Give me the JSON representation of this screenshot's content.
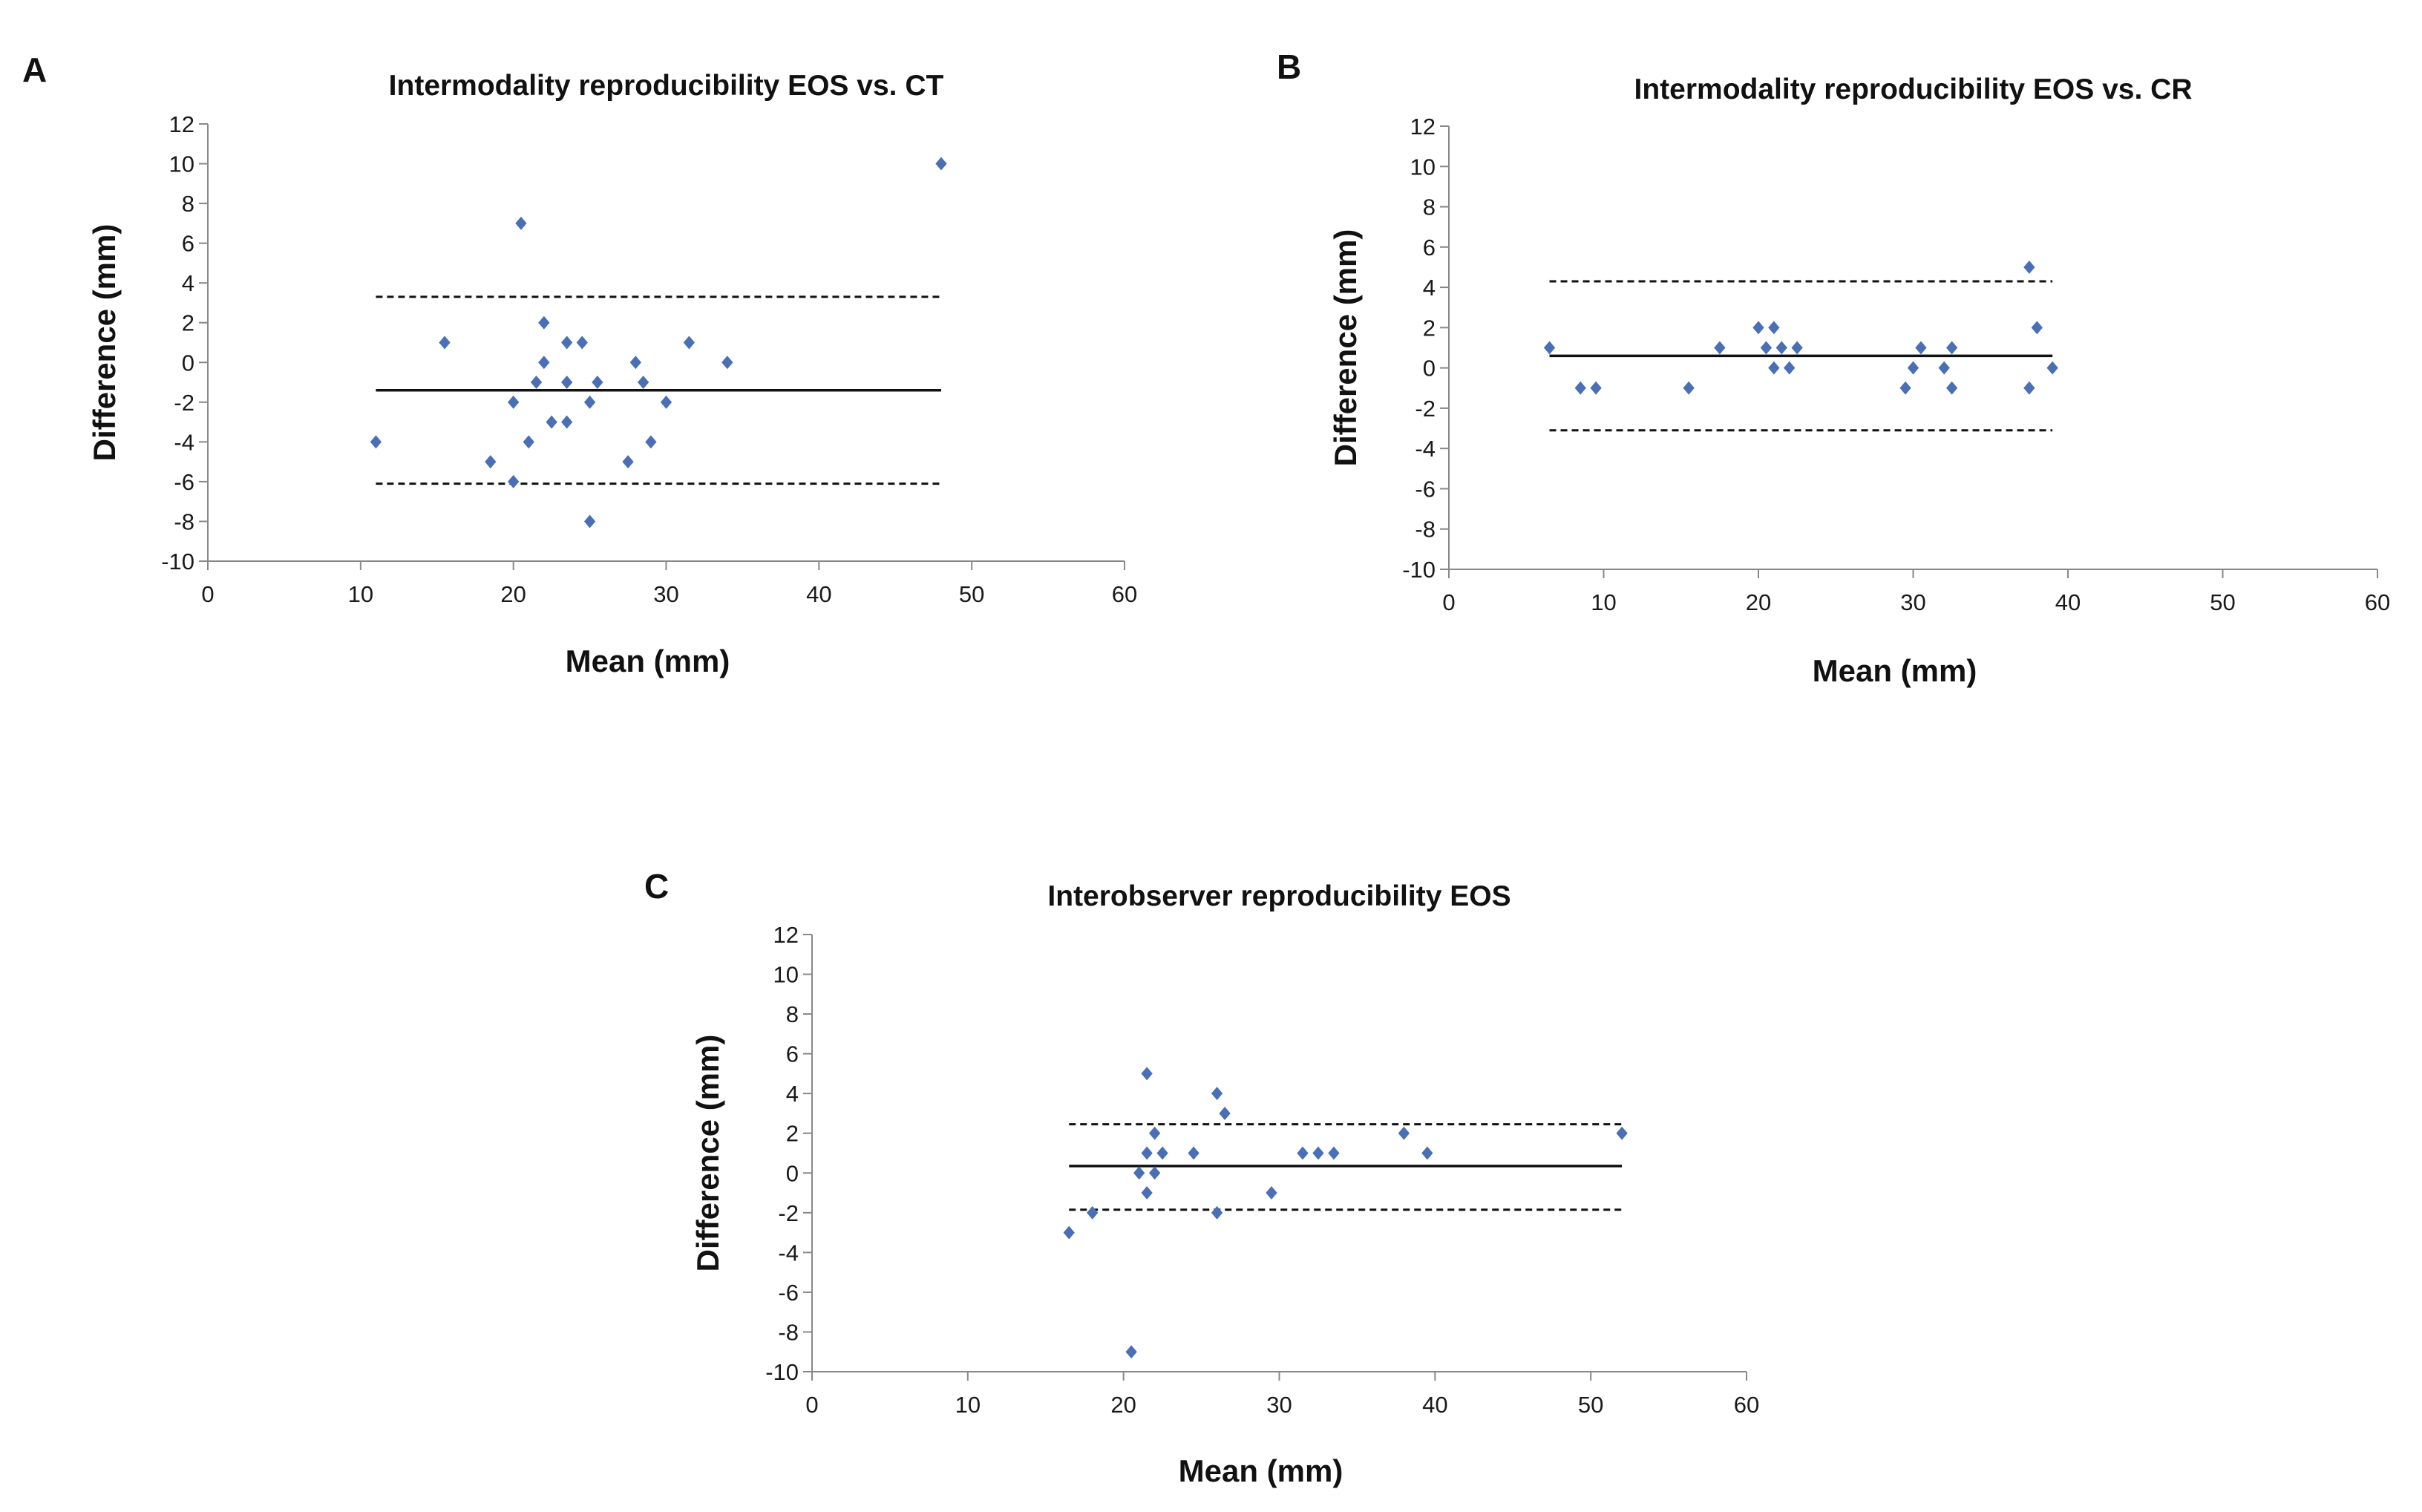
{
  "colors": {
    "point": "#4a6fb5",
    "axis": "#888888",
    "line": "#111111"
  },
  "chart_data": [
    {
      "panel": "A",
      "type": "scatter",
      "title": "Intermodality reproducibility EOS vs. CT",
      "xlabel": "Mean (mm)",
      "ylabel": "Difference (mm)",
      "xlim": [
        0,
        60
      ],
      "ylim": [
        -10,
        12
      ],
      "xticks": [
        0,
        10,
        20,
        30,
        40,
        50,
        60
      ],
      "yticks": [
        -10,
        -8,
        -6,
        -4,
        -2,
        0,
        2,
        4,
        6,
        8,
        10,
        12
      ],
      "points": [
        [
          11,
          -4
        ],
        [
          15.5,
          1
        ],
        [
          18.5,
          -5
        ],
        [
          20,
          -2
        ],
        [
          20,
          -6
        ],
        [
          20.5,
          7
        ],
        [
          21,
          -4
        ],
        [
          21.5,
          -1
        ],
        [
          22,
          2
        ],
        [
          22,
          0
        ],
        [
          22.5,
          -3
        ],
        [
          23.5,
          -3
        ],
        [
          23.5,
          1
        ],
        [
          23.5,
          -1
        ],
        [
          24.5,
          1
        ],
        [
          25,
          -2
        ],
        [
          25,
          -8
        ],
        [
          25.5,
          -1
        ],
        [
          27.5,
          -5
        ],
        [
          28,
          0
        ],
        [
          28.5,
          -1
        ],
        [
          29,
          -4
        ],
        [
          30,
          -2
        ],
        [
          31.5,
          1
        ],
        [
          34,
          0
        ],
        [
          48,
          10
        ]
      ],
      "mean_line": -1.4,
      "upper_loa": 3.3,
      "lower_loa": -6.1,
      "line_x_range": [
        11,
        48
      ]
    },
    {
      "panel": "B",
      "type": "scatter",
      "title": "Intermodality reproducibility EOS vs. CR",
      "xlabel": "Mean (mm)",
      "ylabel": "Difference (mm)",
      "xlim": [
        0,
        60
      ],
      "ylim": [
        -10,
        12
      ],
      "xticks": [
        0,
        10,
        20,
        30,
        40,
        50,
        60
      ],
      "yticks": [
        -10,
        -8,
        -6,
        -4,
        -2,
        0,
        2,
        4,
        6,
        8,
        10,
        12
      ],
      "points": [
        [
          6.5,
          1
        ],
        [
          8.5,
          -1
        ],
        [
          9.5,
          -1
        ],
        [
          15.5,
          -1
        ],
        [
          17.5,
          1
        ],
        [
          20,
          2
        ],
        [
          20.5,
          1
        ],
        [
          21,
          2
        ],
        [
          21,
          0
        ],
        [
          21.5,
          1
        ],
        [
          22,
          0
        ],
        [
          22.5,
          1
        ],
        [
          29.5,
          -1
        ],
        [
          30,
          0
        ],
        [
          30.5,
          1
        ],
        [
          32,
          0
        ],
        [
          32.5,
          -1
        ],
        [
          32.5,
          1
        ],
        [
          37.5,
          5
        ],
        [
          37.5,
          -1
        ],
        [
          38,
          2
        ],
        [
          39,
          0
        ]
      ],
      "mean_line": 0.6,
      "upper_loa": 4.3,
      "lower_loa": -3.1,
      "line_x_range": [
        6.5,
        39
      ]
    },
    {
      "panel": "C",
      "type": "scatter",
      "title": "Interobserver reproducibility EOS",
      "xlabel": "Mean (mm)",
      "ylabel": "Difference (mm)",
      "xlim": [
        0,
        60
      ],
      "ylim": [
        -10,
        12
      ],
      "xticks": [
        0,
        10,
        20,
        30,
        40,
        50,
        60
      ],
      "yticks": [
        -10,
        -8,
        -6,
        -4,
        -2,
        0,
        2,
        4,
        6,
        8,
        10,
        12
      ],
      "points": [
        [
          16.5,
          -3
        ],
        [
          18,
          -2
        ],
        [
          20.5,
          -9
        ],
        [
          21,
          0
        ],
        [
          21.5,
          5
        ],
        [
          21.5,
          -1
        ],
        [
          21.5,
          1
        ],
        [
          22,
          2
        ],
        [
          22,
          0
        ],
        [
          22.5,
          1
        ],
        [
          24.5,
          1
        ],
        [
          26,
          4
        ],
        [
          26,
          -2
        ],
        [
          26.5,
          3
        ],
        [
          29.5,
          -1
        ],
        [
          31.5,
          1
        ],
        [
          32.5,
          1
        ],
        [
          33.5,
          1
        ],
        [
          38,
          2
        ],
        [
          39.5,
          1
        ],
        [
          52,
          2
        ]
      ],
      "mean_line": 0.35,
      "upper_loa": 2.45,
      "lower_loa": -1.85,
      "line_x_range": [
        16.5,
        52
      ]
    }
  ]
}
